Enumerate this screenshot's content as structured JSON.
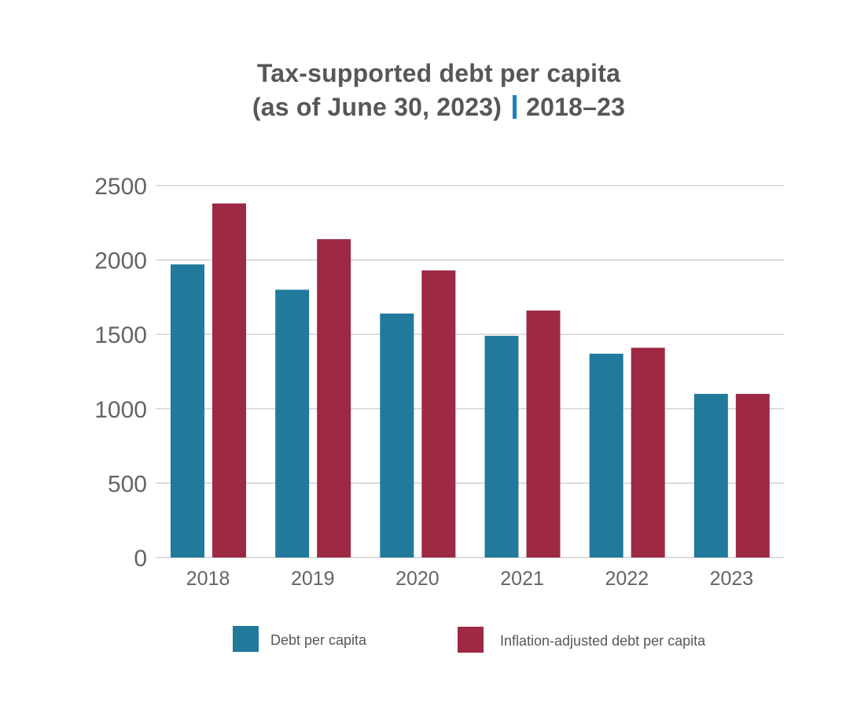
{
  "chart_data": {
    "type": "bar",
    "title_line1": "Tax-supported debt per capita",
    "title_line2_a": "(as of June 30, 2023)",
    "title_line2_b": "2018–23",
    "categories": [
      "2018",
      "2019",
      "2020",
      "2021",
      "2022",
      "2023"
    ],
    "series": [
      {
        "name": "Debt per capita",
        "color": "#21799b",
        "values": [
          1970,
          1800,
          1640,
          1490,
          1370,
          1100
        ]
      },
      {
        "name": "Inflation-adjusted debt per capita",
        "color": "#9e2944",
        "values": [
          2380,
          2140,
          1930,
          1660,
          1410,
          1100
        ]
      }
    ],
    "ylim": [
      0,
      2500
    ],
    "yticks": [
      "0",
      "500",
      "1000",
      "1500",
      "2000",
      "2500"
    ],
    "grid": true,
    "legend": "bottom",
    "colors": {
      "title": "#555759",
      "separator": "#1f7fc4",
      "axis_text": "#636466",
      "grid": "#c9c9c9"
    }
  }
}
